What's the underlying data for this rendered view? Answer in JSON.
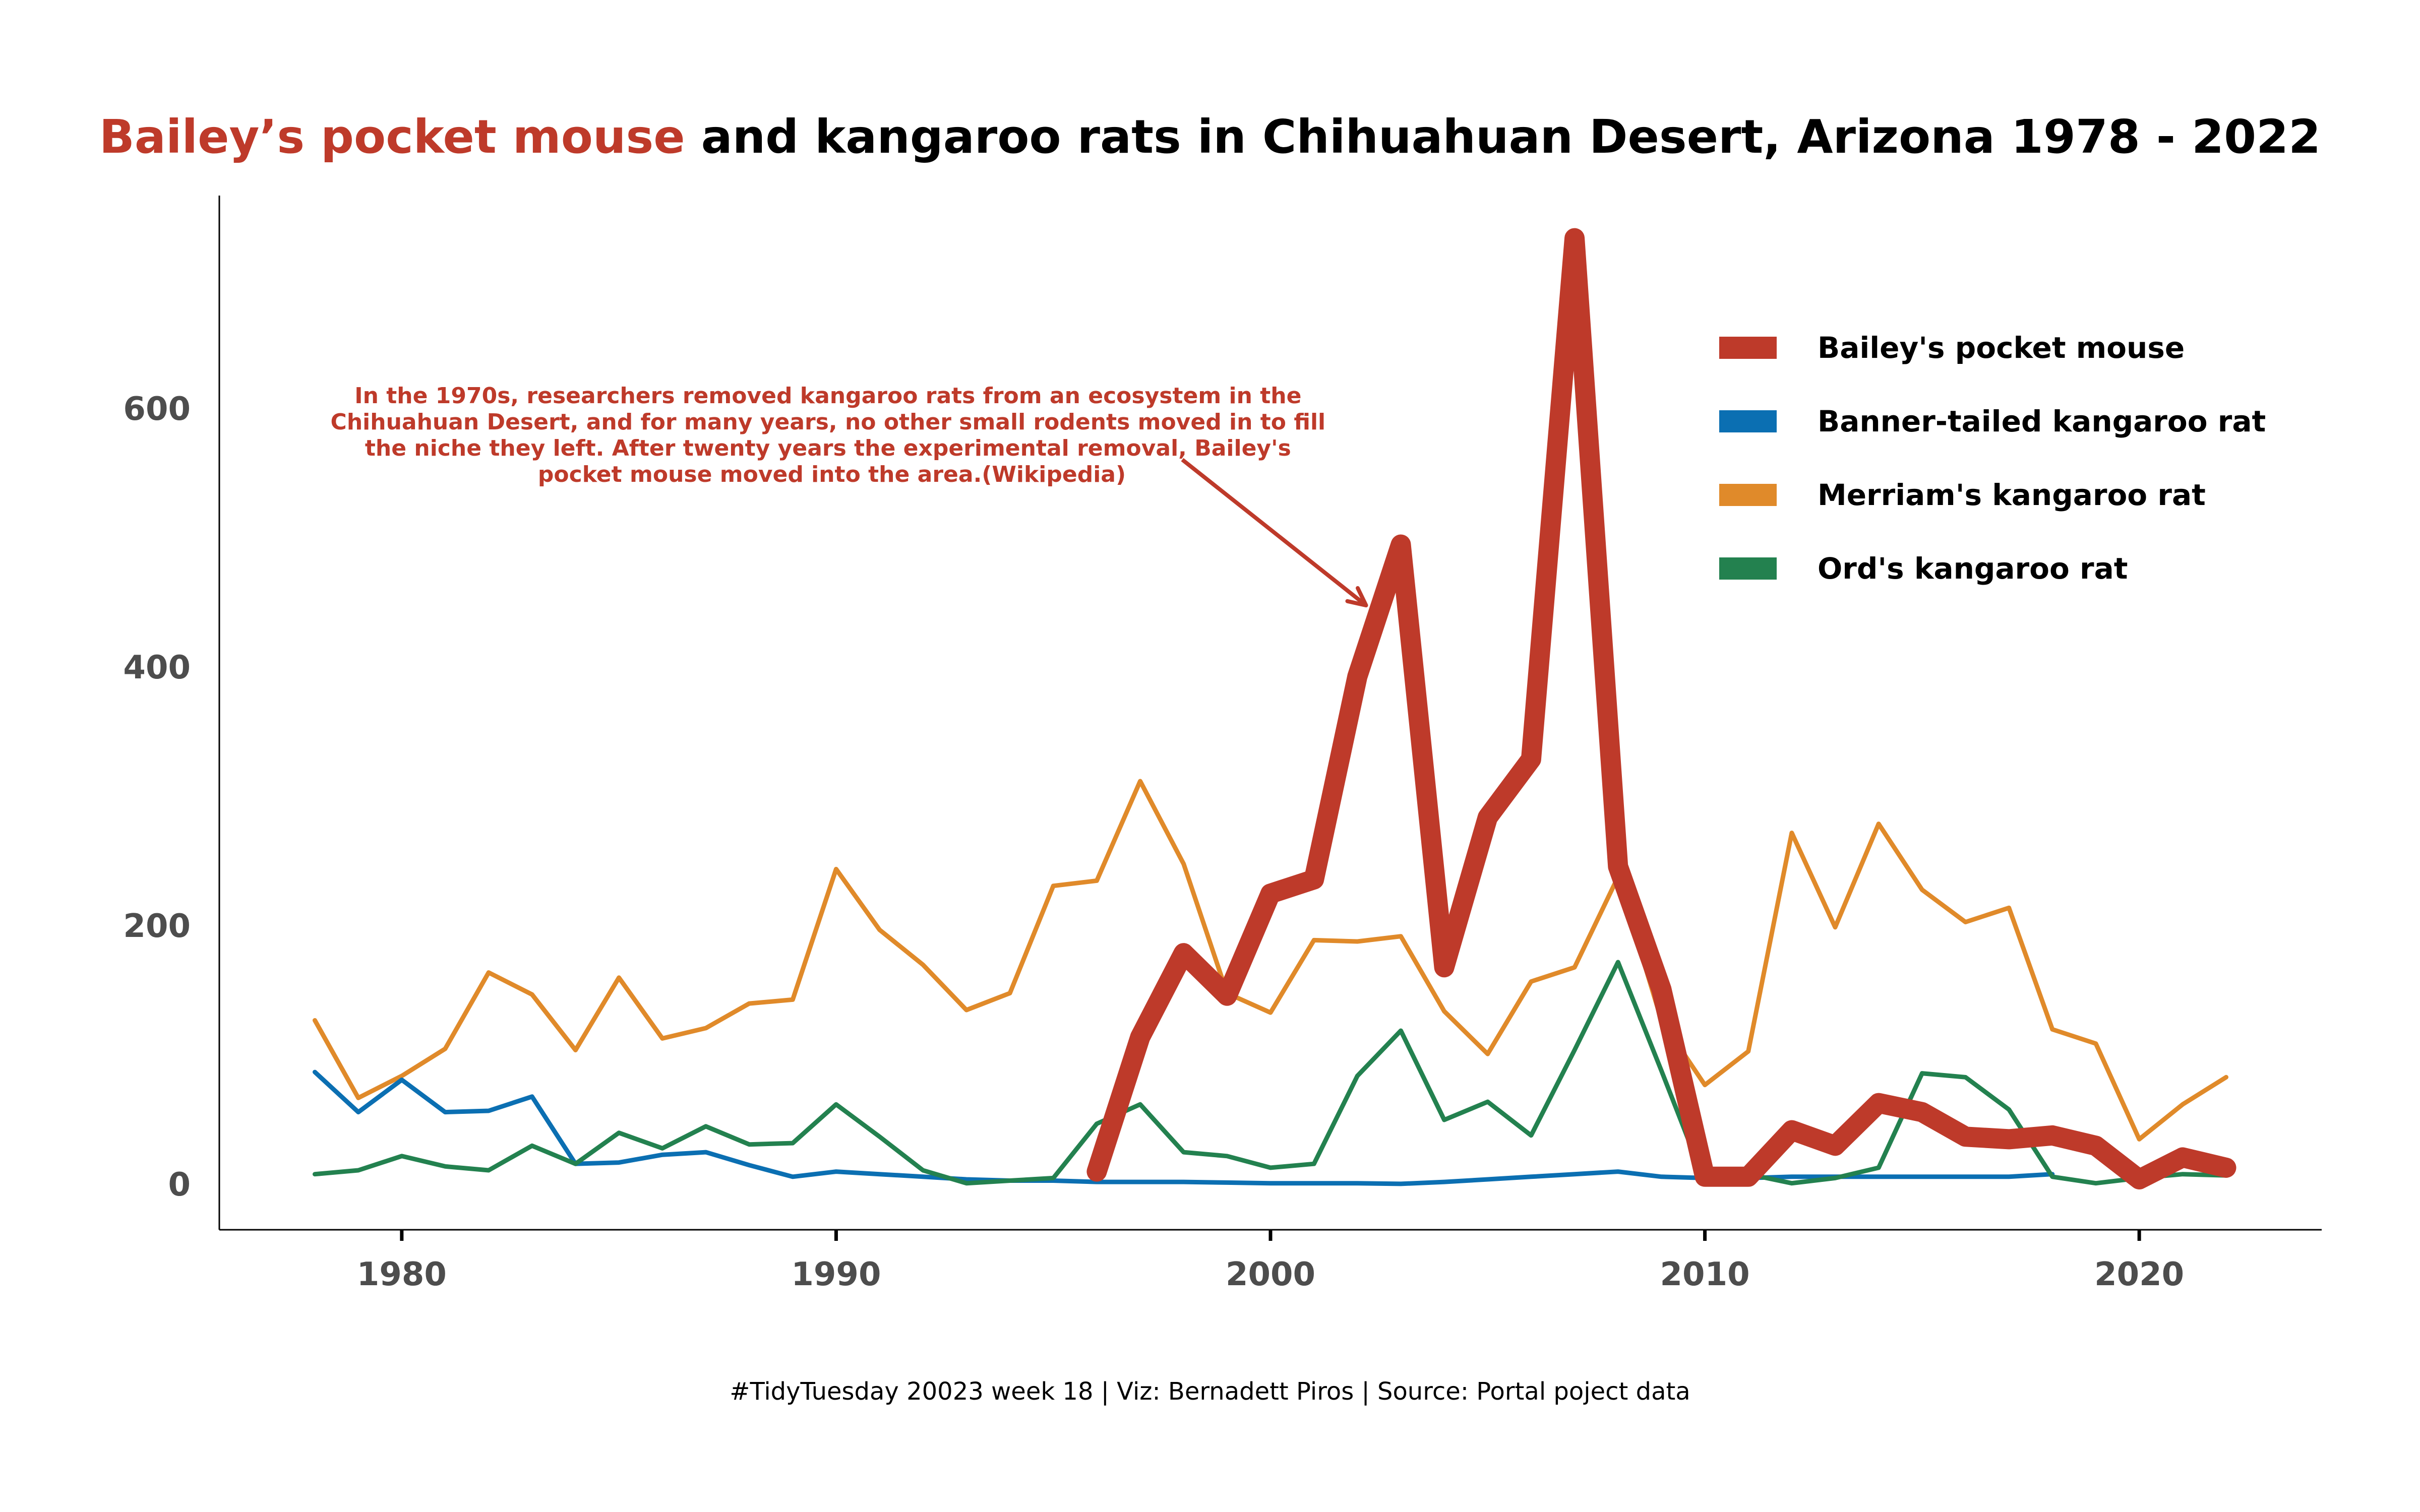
{
  "title": {
    "highlight": "Bailey’s pocket mouse",
    "rest": " and kangaroo rats in Chihuahuan Desert, Arizona 1978 - 2022"
  },
  "caption": "#TidyTuesday 20023 week 18 | Viz: Bernadett Piros | Source: Portal poject data",
  "annotation": {
    "lines": [
      "In the 1970s, researchers removed kangaroo rats from an ecosystem in the",
      "Chihuahuan Desert, and for many years, no other small rodents moved in to fill",
      "the niche they left. After twenty years the experimental removal, Bailey's",
      "pocket mouse moved into the area.(Wikipedia)"
    ],
    "arrow_target": {
      "x": 2002.2,
      "y": 448
    }
  },
  "colors": {
    "highlight": "#be3a2a",
    "title": "#000000",
    "axis": "#000000",
    "tick_text": "#4d4d4d"
  },
  "chart_data": {
    "type": "line",
    "xlim": [
      1975.8,
      2024.2
    ],
    "ylim": [
      -35,
      765
    ],
    "x_ticks": [
      1980,
      1990,
      2000,
      2010,
      2020
    ],
    "y_ticks": [
      0,
      200,
      400,
      600
    ],
    "grid": false,
    "legend_position": "top-right",
    "series": [
      {
        "name": "Merriam's kangaroo rat",
        "color": "#e08a2a",
        "x": [
          1978,
          1979,
          1980,
          1981,
          1982,
          1983,
          1984,
          1985,
          1986,
          1987,
          1988,
          1989,
          1990,
          1991,
          1992,
          1993,
          1994,
          1995,
          1996,
          1997,
          1998,
          1999,
          2000,
          2001,
          2002,
          2003,
          2004,
          2005,
          2006,
          2007,
          2008,
          2009,
          2010,
          2011,
          2012,
          2013,
          2014,
          2015,
          2016,
          2017,
          2018,
          2019,
          2020,
          2021,
          2022
        ],
        "values": [
          127,
          67,
          84,
          105,
          164,
          147,
          104,
          160,
          113,
          121,
          140,
          143,
          244,
          197,
          170,
          135,
          148,
          231,
          235,
          312,
          248,
          148,
          133,
          189,
          188,
          192,
          134,
          101,
          157,
          168,
          238,
          127,
          77,
          103,
          272,
          199,
          279,
          228,
          203,
          214,
          120,
          109,
          35,
          62,
          83
        ]
      },
      {
        "name": "Banner-tailed kangaroo rat",
        "color": "#0b6fb2",
        "x": [
          1978,
          1979,
          1980,
          1981,
          1982,
          1983,
          1984,
          1985,
          1986,
          1987,
          1988,
          1989,
          1990,
          1991,
          1992,
          1993,
          1994,
          1995,
          1996,
          1997,
          1998,
          1999,
          2000,
          2001,
          2002,
          2003,
          2004,
          2005,
          2006,
          2007,
          2008,
          2009,
          2010,
          2011,
          2012,
          2013,
          2014,
          2015,
          2016,
          2017,
          2018
        ],
        "values": [
          87,
          56,
          81,
          56,
          57,
          68,
          16,
          17,
          23,
          25,
          15,
          6,
          10,
          8,
          6,
          4,
          3,
          3,
          2,
          2,
          2,
          1.5,
          1,
          1,
          1,
          0.5,
          2,
          4,
          6,
          8,
          10,
          6,
          5,
          5,
          6,
          6,
          6,
          6,
          6,
          6,
          8
        ]
      },
      {
        "name": "Ord's kangaroo rat",
        "color": "#23814f",
        "x": [
          1978,
          1979,
          1980,
          1981,
          1982,
          1983,
          1984,
          1985,
          1986,
          1987,
          1988,
          1989,
          1990,
          1991,
          1992,
          1993,
          1994,
          1995,
          1996,
          1997,
          1998,
          1999,
          2000,
          2001,
          2002,
          2003,
          2004,
          2005,
          2006,
          2007,
          2008,
          2009,
          2010,
          2011,
          2012,
          2013,
          2014,
          2015,
          2016,
          2017,
          2018,
          2019,
          2020,
          2021,
          2022
        ],
        "values": [
          8,
          11,
          22,
          14,
          11,
          30,
          16,
          40,
          28,
          45,
          31,
          32,
          62,
          37,
          11,
          1,
          3,
          5,
          47,
          62,
          25,
          22,
          13,
          16,
          84,
          119,
          50,
          64,
          38,
          104,
          172,
          88,
          2,
          8,
          1,
          5,
          13,
          86,
          83,
          58,
          6,
          1,
          5,
          8,
          7
        ]
      },
      {
        "name": "Bailey's pocket mouse",
        "color": "#be3a2a",
        "x": [
          1996,
          1997,
          1998,
          1999,
          2000,
          2001,
          2002,
          2003,
          2004,
          2005,
          2006,
          2007,
          2008,
          2009,
          2010,
          2011,
          2012,
          2013,
          2014,
          2015,
          2016,
          2017,
          2018,
          2019,
          2020,
          2021,
          2022
        ],
        "values": [
          10,
          114,
          179,
          146,
          225,
          236,
          393,
          495,
          168,
          284,
          329,
          732,
          246,
          151,
          6,
          6,
          42,
          30,
          63,
          56,
          37,
          35,
          38,
          30,
          4,
          21,
          13
        ]
      }
    ],
    "legend_order": [
      "Bailey's pocket mouse",
      "Banner-tailed kangaroo rat",
      "Merriam's kangaroo rat",
      "Ord's kangaroo rat"
    ]
  }
}
